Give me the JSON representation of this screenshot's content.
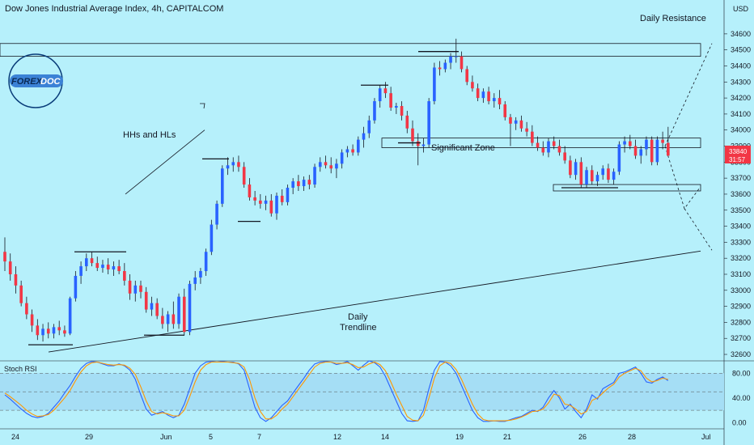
{
  "header": {
    "title": "Dow Jones Industrial Average Index, 4h, CAPITALCOM",
    "currency": "USD"
  },
  "logo": {
    "text": "FOREXDOC",
    "part1": "FOREX",
    "part2": "DOC"
  },
  "annotations": {
    "daily_resistance": "Daily Resistance",
    "hhs_hls": "HHs and HLs",
    "significant_zone": "Significant Zone",
    "daily_trendline_1": "Daily",
    "daily_trendline_2": "Trendline"
  },
  "price_tags": {
    "price": "33840",
    "countdown": "31:57"
  },
  "colors": {
    "background": "#b6f0fb",
    "up": "#2962ff",
    "down": "#f23645",
    "stoch_k": "#2962ff",
    "stoch_d": "#ff9800",
    "stoch_band": "#a5def5"
  },
  "chart_data": [
    {
      "type": "candlestick",
      "title": "Dow Jones Industrial Average Index, 4h, CAPITALCOM",
      "x_ticks": [
        "24",
        "29",
        "Jun",
        "5",
        "7",
        "12",
        "14",
        "19",
        "21",
        "26",
        "28",
        "Jul"
      ],
      "y_ticks": [
        32600,
        32700,
        32800,
        32900,
        33000,
        33100,
        33200,
        33300,
        33400,
        33500,
        33600,
        33700,
        33800,
        33900,
        34000,
        34100,
        34200,
        34300,
        34400,
        34500,
        34600
      ],
      "ylim": [
        32590,
        34660
      ],
      "current_price": 33840,
      "candles_ohlc": [
        [
          33240,
          33330,
          33120,
          33180
        ],
        [
          33180,
          33230,
          33060,
          33100
        ],
        [
          33100,
          33150,
          32980,
          33030
        ],
        [
          33030,
          33060,
          32900,
          32920
        ],
        [
          32920,
          32960,
          32820,
          32850
        ],
        [
          32850,
          32880,
          32740,
          32780
        ],
        [
          32780,
          32820,
          32690,
          32720
        ],
        [
          32720,
          32790,
          32680,
          32760
        ],
        [
          32760,
          32800,
          32700,
          32730
        ],
        [
          32730,
          32790,
          32700,
          32770
        ],
        [
          32770,
          32810,
          32720,
          32750
        ],
        [
          32750,
          32780,
          32710,
          32730
        ],
        [
          32730,
          32960,
          32720,
          32950
        ],
        [
          32950,
          33120,
          32930,
          33090
        ],
        [
          33090,
          33180,
          33040,
          33150
        ],
        [
          33150,
          33230,
          33120,
          33200
        ],
        [
          33200,
          33240,
          33150,
          33170
        ],
        [
          33170,
          33210,
          33120,
          33140
        ],
        [
          33140,
          33190,
          33110,
          33160
        ],
        [
          33160,
          33200,
          33100,
          33130
        ],
        [
          33130,
          33180,
          33090,
          33150
        ],
        [
          33150,
          33190,
          33100,
          33120
        ],
        [
          33120,
          33170,
          33030,
          33060
        ],
        [
          33060,
          33100,
          32940,
          32980
        ],
        [
          32980,
          33060,
          32930,
          33030
        ],
        [
          33030,
          33060,
          32950,
          32990
        ],
        [
          32990,
          33020,
          32860,
          32880
        ],
        [
          32880,
          32960,
          32840,
          32920
        ],
        [
          32920,
          32950,
          32820,
          32840
        ],
        [
          32840,
          32890,
          32760,
          32790
        ],
        [
          32790,
          32870,
          32740,
          32850
        ],
        [
          32850,
          32930,
          32760,
          32790
        ],
        [
          32790,
          32980,
          32760,
          32960
        ],
        [
          32960,
          33010,
          32720,
          32740
        ],
        [
          32740,
          33060,
          32720,
          33040
        ],
        [
          33040,
          33120,
          33000,
          33080
        ],
        [
          33080,
          33140,
          33040,
          33120
        ],
        [
          33120,
          33260,
          33090,
          33240
        ],
        [
          33240,
          33440,
          33220,
          33410
        ],
        [
          33410,
          33560,
          33380,
          33540
        ],
        [
          33540,
          33780,
          33520,
          33760
        ],
        [
          33760,
          33830,
          33720,
          33780
        ],
        [
          33780,
          33830,
          33740,
          33800
        ],
        [
          33800,
          33840,
          33740,
          33770
        ],
        [
          33770,
          33800,
          33640,
          33660
        ],
        [
          33660,
          33700,
          33560,
          33580
        ],
        [
          33580,
          33620,
          33530,
          33560
        ],
        [
          33560,
          33600,
          33510,
          33540
        ],
        [
          33540,
          33590,
          33500,
          33560
        ],
        [
          33560,
          33600,
          33460,
          33480
        ],
        [
          33480,
          33610,
          33440,
          33590
        ],
        [
          33590,
          33630,
          33530,
          33550
        ],
        [
          33550,
          33660,
          33530,
          33640
        ],
        [
          33640,
          33700,
          33600,
          33680
        ],
        [
          33680,
          33720,
          33620,
          33650
        ],
        [
          33650,
          33710,
          33620,
          33690
        ],
        [
          33690,
          33720,
          33630,
          33660
        ],
        [
          33660,
          33790,
          33640,
          33770
        ],
        [
          33770,
          33830,
          33740,
          33800
        ],
        [
          33800,
          33840,
          33760,
          33780
        ],
        [
          33780,
          33830,
          33730,
          33760
        ],
        [
          33760,
          33820,
          33700,
          33790
        ],
        [
          33790,
          33880,
          33760,
          33860
        ],
        [
          33860,
          33900,
          33830,
          33880
        ],
        [
          33880,
          33910,
          33840,
          33860
        ],
        [
          33860,
          33960,
          33840,
          33940
        ],
        [
          33940,
          34020,
          33890,
          33980
        ],
        [
          33980,
          34090,
          33950,
          34060
        ],
        [
          34060,
          34200,
          34040,
          34180
        ],
        [
          34180,
          34280,
          34140,
          34260
        ],
        [
          34260,
          34300,
          34200,
          34230
        ],
        [
          34230,
          34270,
          34120,
          34140
        ],
        [
          34140,
          34170,
          34100,
          34150
        ],
        [
          34150,
          34180,
          34060,
          34090
        ],
        [
          34090,
          34120,
          33980,
          34010
        ],
        [
          34010,
          34060,
          33900,
          33930
        ],
        [
          33930,
          33980,
          33780,
          33900
        ],
        [
          33900,
          33950,
          33860,
          33910
        ],
        [
          33910,
          34200,
          33890,
          34180
        ],
        [
          34180,
          34420,
          34160,
          34390
        ],
        [
          34390,
          34430,
          34340,
          34380
        ],
        [
          34380,
          34440,
          34360,
          34420
        ],
        [
          34420,
          34480,
          34380,
          34460
        ],
        [
          34460,
          34570,
          34420,
          34460
        ],
        [
          34460,
          34490,
          34360,
          34380
        ],
        [
          34380,
          34400,
          34280,
          34300
        ],
        [
          34300,
          34340,
          34240,
          34260
        ],
        [
          34260,
          34290,
          34180,
          34200
        ],
        [
          34200,
          34260,
          34170,
          34240
        ],
        [
          34240,
          34270,
          34160,
          34180
        ],
        [
          34180,
          34230,
          34140,
          34200
        ],
        [
          34200,
          34250,
          34130,
          34160
        ],
        [
          34160,
          34180,
          34060,
          34080
        ],
        [
          34080,
          34100,
          33900,
          34040
        ],
        [
          34040,
          34080,
          34000,
          34060
        ],
        [
          34060,
          34090,
          33990,
          34010
        ],
        [
          34010,
          34050,
          33960,
          33990
        ],
        [
          33990,
          34030,
          33900,
          33920
        ],
        [
          33920,
          33960,
          33870,
          33890
        ],
        [
          33890,
          33930,
          33840,
          33860
        ],
        [
          33860,
          33950,
          33830,
          33930
        ],
        [
          33930,
          33960,
          33880,
          33900
        ],
        [
          33900,
          33940,
          33840,
          33860
        ],
        [
          33860,
          33900,
          33790,
          33810
        ],
        [
          33810,
          33840,
          33700,
          33720
        ],
        [
          33720,
          33820,
          33690,
          33800
        ],
        [
          33800,
          33830,
          33640,
          33660
        ],
        [
          33660,
          33770,
          33640,
          33750
        ],
        [
          33750,
          33780,
          33660,
          33680
        ],
        [
          33680,
          33740,
          33650,
          33720
        ],
        [
          33720,
          33780,
          33690,
          33760
        ],
        [
          33760,
          33790,
          33670,
          33690
        ],
        [
          33690,
          33760,
          33660,
          33740
        ],
        [
          33740,
          33930,
          33720,
          33910
        ],
        [
          33910,
          33960,
          33860,
          33930
        ],
        [
          33930,
          33970,
          33880,
          33900
        ],
        [
          33900,
          33940,
          33820,
          33840
        ],
        [
          33840,
          33900,
          33790,
          33880
        ],
        [
          33880,
          33960,
          33840,
          33940
        ],
        [
          33940,
          33960,
          33780,
          33800
        ],
        [
          33800,
          33960,
          33780,
          33940
        ],
        [
          33940,
          33990,
          33880,
          33920
        ],
        [
          33920,
          34020,
          33860,
          33840
        ]
      ]
    },
    {
      "type": "line",
      "title": "Stoch RSI",
      "y_ticks": [
        0.0,
        40.0,
        80.0
      ],
      "y_tick_labels": [
        "0.00",
        "40.00",
        "80.00"
      ],
      "ylim": [
        -10,
        100
      ],
      "series": [
        {
          "values": [
            45,
            38,
            30,
            22,
            15,
            10,
            8,
            10,
            15,
            25,
            35,
            48,
            60,
            75,
            88,
            96,
            99,
            98,
            95,
            92,
            92,
            95,
            92,
            85,
            70,
            45,
            22,
            12,
            15,
            18,
            12,
            8,
            12,
            30,
            55,
            80,
            92,
            98,
            99,
            98,
            99,
            98,
            98,
            95,
            85,
            55,
            25,
            8,
            2,
            8,
            18,
            28,
            35,
            48,
            60,
            72,
            85,
            95,
            98,
            99,
            98,
            94,
            96,
            99,
            92,
            85,
            93,
            100,
            97,
            90,
            75,
            55,
            35,
            15,
            3,
            2,
            3,
            20,
            55,
            85,
            99,
            98,
            92,
            80,
            60,
            40,
            20,
            8,
            2,
            2,
            3,
            2,
            2,
            5,
            8,
            10,
            15,
            20,
            18,
            25,
            40,
            52,
            40,
            22,
            30,
            18,
            8,
            22,
            45,
            38,
            55,
            60,
            65,
            80,
            82,
            86,
            90,
            80,
            66,
            64,
            70,
            74,
            68
          ]
        },
        {
          "values": [
            48,
            42,
            35,
            28,
            20,
            14,
            10,
            11,
            13,
            20,
            30,
            40,
            52,
            68,
            82,
            92,
            97,
            98,
            96,
            94,
            93,
            94,
            93,
            88,
            78,
            58,
            35,
            18,
            14,
            16,
            14,
            11,
            11,
            20,
            42,
            66,
            85,
            94,
            98,
            98,
            98,
            98,
            97,
            96,
            90,
            70,
            40,
            18,
            6,
            6,
            12,
            22,
            30,
            42,
            54,
            66,
            78,
            90,
            96,
            98,
            98,
            96,
            96,
            97,
            94,
            89,
            90,
            95,
            98,
            94,
            84,
            66,
            46,
            28,
            10,
            4,
            3,
            12,
            40,
            72,
            92,
            98,
            96,
            86,
            70,
            50,
            30,
            14,
            5,
            3,
            3,
            3,
            3,
            4,
            6,
            9,
            13,
            18,
            19,
            22,
            32,
            46,
            44,
            30,
            28,
            22,
            14,
            18,
            36,
            40,
            48,
            56,
            62,
            74,
            80,
            84,
            88,
            84,
            72,
            66,
            68,
            72,
            70
          ]
        }
      ]
    }
  ]
}
